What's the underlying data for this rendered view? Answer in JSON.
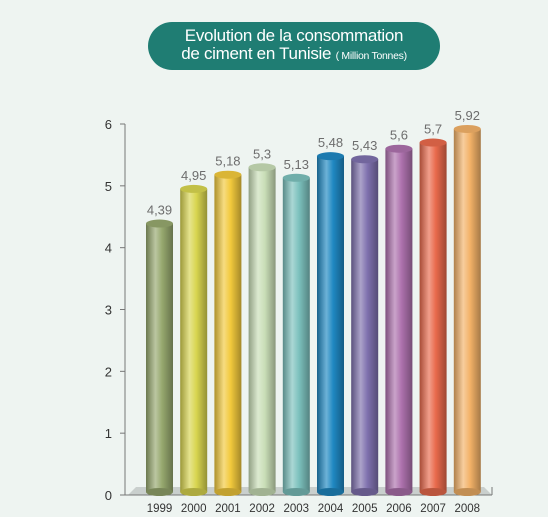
{
  "chart_data": {
    "type": "bar",
    "title_line1": "Evolution de la consommation",
    "title_line2": "de ciment en Tunisie",
    "title_unit": "( Million Tonnes)",
    "categories": [
      "1999",
      "2000",
      "2001",
      "2002",
      "2003",
      "2004",
      "2005",
      "2006",
      "2007",
      "2008"
    ],
    "values": [
      4.39,
      4.95,
      5.18,
      5.3,
      5.13,
      5.48,
      5.43,
      5.6,
      5.7,
      5.92
    ],
    "value_labels": [
      "4,39",
      "4,95",
      "5,18",
      "5,3",
      "5,13",
      "5,48",
      "5,43",
      "5,6",
      "5,7",
      "5,92"
    ],
    "yticks": [
      "0",
      "1",
      "2",
      "3",
      "4",
      "5",
      "6"
    ],
    "ylim": [
      0,
      6
    ],
    "xlabel": "",
    "ylabel": "",
    "grid": false,
    "colors": [
      "#96a86e",
      "#d8d54f",
      "#f2c93c",
      "#c9deb7",
      "#7cc1bd",
      "#1f88c2",
      "#7f71ae",
      "#ad71ad",
      "#e96a4c",
      "#f3b268"
    ]
  }
}
